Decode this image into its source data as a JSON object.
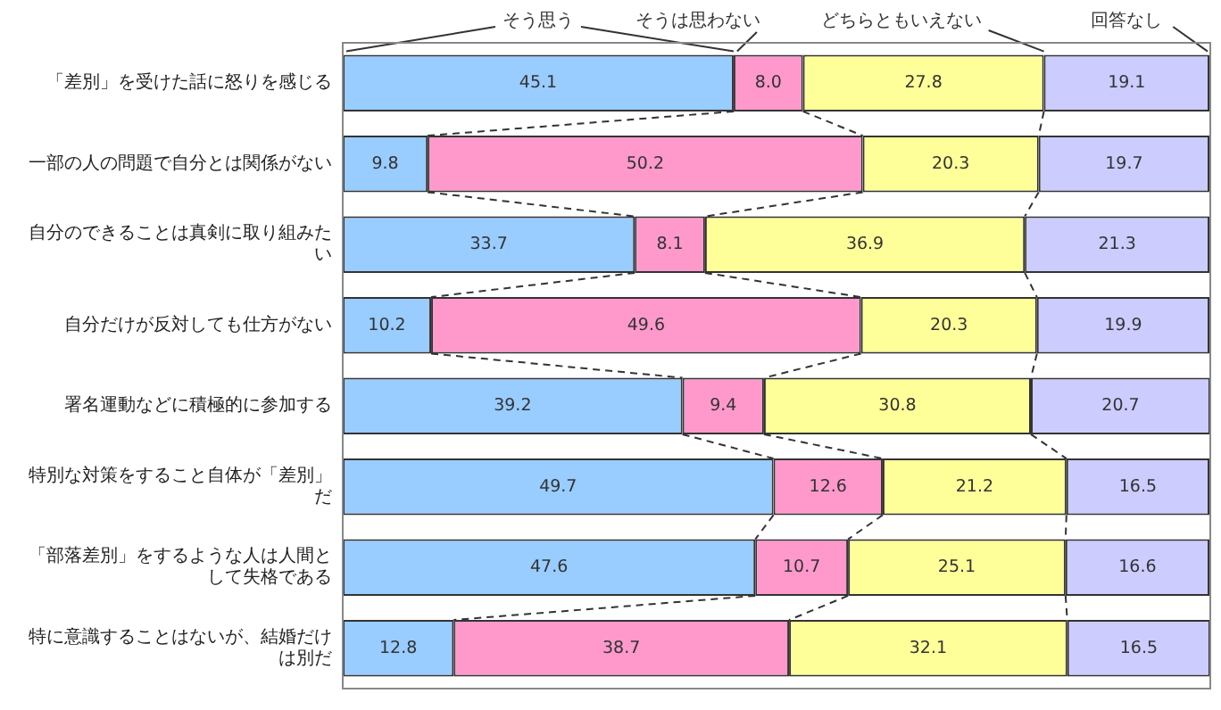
{
  "chart_data": {
    "type": "bar",
    "orientation": "horizontal",
    "stacked": true,
    "legend": "top",
    "tick_labels": "y",
    "categories": [
      "「差別」を受けた話に怒りを感じる",
      "一部の人の問題で自分とは関係がない",
      "自分のできることは真剣に取り組みたい",
      "自分だけが反対しても仕方がない",
      "署名運動などに積極的に参加する",
      "特別な対策をすること自体が「差別」だ",
      "「部落差別」をするような人は人間として失格である",
      "特に意識することはないが、結婚だけは別だ"
    ],
    "series": [
      {
        "name": "そう思う",
        "color": "#99ccff",
        "values": [
          45.1,
          9.8,
          33.7,
          10.2,
          39.2,
          49.7,
          47.6,
          12.8
        ],
        "value_labels": [
          "45.1",
          "9.8",
          "33.7",
          "10.2",
          "39.2",
          "49.7",
          "47.6",
          "12.8"
        ]
      },
      {
        "name": "そうは思わない",
        "color": "#ff99cc",
        "values": [
          8.0,
          50.2,
          8.1,
          49.6,
          9.4,
          12.6,
          10.7,
          38.7
        ],
        "value_labels": [
          "8.0",
          "50.2",
          "8.1",
          "49.6",
          "9.4",
          "12.6",
          "10.7",
          "38.7"
        ]
      },
      {
        "name": "どちらともいえない",
        "color": "#ffff99",
        "values": [
          27.8,
          20.3,
          36.9,
          20.3,
          30.8,
          21.2,
          25.1,
          32.1
        ],
        "value_labels": [
          "27.8",
          "20.3",
          "36.9",
          "20.3",
          "30.8",
          "21.2",
          "25.1",
          "32.1"
        ]
      },
      {
        "name": "回答なし",
        "color": "#ccccff",
        "values": [
          19.1,
          19.7,
          21.3,
          19.9,
          20.7,
          16.5,
          16.6,
          16.5
        ],
        "value_labels": [
          "19.1",
          "19.7",
          "21.3",
          "19.9",
          "20.7",
          "16.5",
          "16.6",
          "16.5"
        ]
      }
    ]
  }
}
